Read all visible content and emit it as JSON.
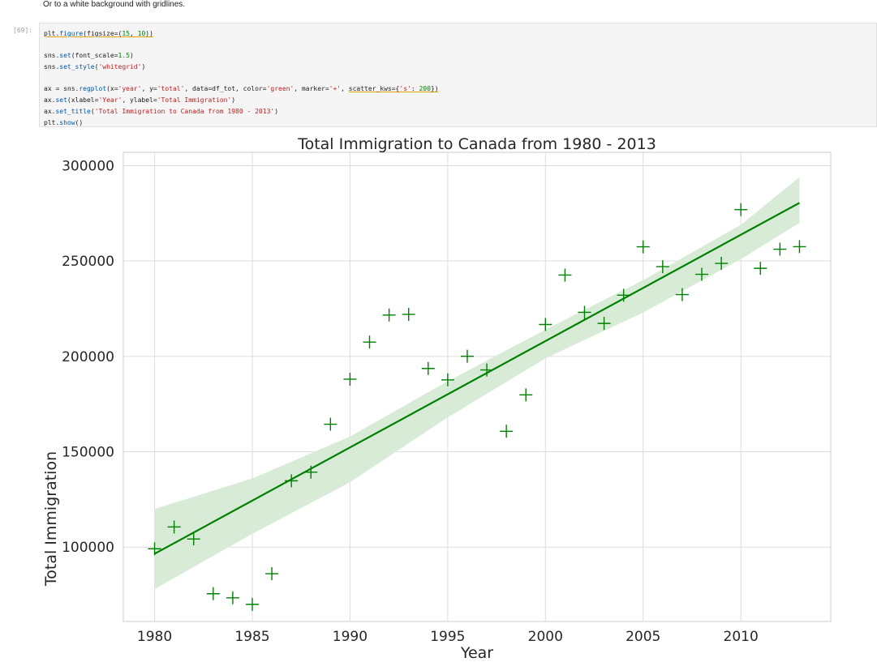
{
  "markdown_text": "Or to a white background with gridlines.",
  "cell_prompt": "[69]:",
  "code_lines": [
    [
      {
        "t": "plt.",
        "c": "ul"
      },
      {
        "t": "figure",
        "c": "ul kw"
      },
      {
        "t": "(",
        "c": "ul"
      },
      {
        "t": "figsize",
        "c": "ul"
      },
      {
        "t": "=(",
        "c": "ul"
      },
      {
        "t": "15",
        "c": "ul num"
      },
      {
        "t": ", ",
        "c": "ul"
      },
      {
        "t": "10",
        "c": "ul num"
      },
      {
        "t": "))",
        "c": "ul"
      }
    ],
    [],
    [
      {
        "t": "sns.",
        "c": ""
      },
      {
        "t": "set",
        "c": "kw"
      },
      {
        "t": "(font_scale=",
        "c": ""
      },
      {
        "t": "1.5",
        "c": "num"
      },
      {
        "t": ")",
        "c": ""
      }
    ],
    [
      {
        "t": "sns.",
        "c": ""
      },
      {
        "t": "set_style",
        "c": "kw"
      },
      {
        "t": "(",
        "c": ""
      },
      {
        "t": "'whitegrid'",
        "c": "str"
      },
      {
        "t": ")",
        "c": ""
      }
    ],
    [],
    [
      {
        "t": "ax = sns.",
        "c": ""
      },
      {
        "t": "regplot",
        "c": "kw"
      },
      {
        "t": "(x=",
        "c": ""
      },
      {
        "t": "'year'",
        "c": "str"
      },
      {
        "t": ", y=",
        "c": ""
      },
      {
        "t": "'total'",
        "c": "str"
      },
      {
        "t": ", data=df_tot, color=",
        "c": ""
      },
      {
        "t": "'green'",
        "c": "str"
      },
      {
        "t": ", marker=",
        "c": ""
      },
      {
        "t": "'+'",
        "c": "str"
      },
      {
        "t": ", ",
        "c": ""
      },
      {
        "t": "scatter_kws={",
        "c": "ul"
      },
      {
        "t": "'s'",
        "c": "ul str"
      },
      {
        "t": ": ",
        "c": "ul"
      },
      {
        "t": "200",
        "c": "ul num"
      },
      {
        "t": "})",
        "c": "ul"
      }
    ],
    [
      {
        "t": "ax.",
        "c": ""
      },
      {
        "t": "set",
        "c": "kw"
      },
      {
        "t": "(xlabel=",
        "c": ""
      },
      {
        "t": "'Year'",
        "c": "str"
      },
      {
        "t": ", ylabel=",
        "c": ""
      },
      {
        "t": "'Total Immigration'",
        "c": "str"
      },
      {
        "t": ")",
        "c": ""
      }
    ],
    [
      {
        "t": "ax.",
        "c": ""
      },
      {
        "t": "set_title",
        "c": "kw"
      },
      {
        "t": "(",
        "c": ""
      },
      {
        "t": "'Total Immigration to Canada from 1980 - 2013'",
        "c": "str"
      },
      {
        "t": ")",
        "c": ""
      }
    ],
    [
      {
        "t": "plt.",
        "c": ""
      },
      {
        "t": "show",
        "c": "kw"
      },
      {
        "t": "()",
        "c": ""
      }
    ]
  ],
  "chart_data": {
    "type": "scatter",
    "title": "Total Immigration to Canada from 1980 - 2013",
    "xlabel": "Year",
    "ylabel": "Total Immigration",
    "xlim": [
      1978.4,
      2014.6
    ],
    "ylim": [
      61000,
      307000
    ],
    "xticks": [
      1980,
      1985,
      1990,
      1995,
      2000,
      2005,
      2010
    ],
    "yticks": [
      100000,
      150000,
      200000,
      250000,
      300000
    ],
    "grid": true,
    "marker": "+",
    "color": "#008000",
    "ci_color": "#d7ebd7",
    "points": [
      [
        1980,
        99137
      ],
      [
        1981,
        110563
      ],
      [
        1982,
        104271
      ],
      [
        1983,
        75550
      ],
      [
        1984,
        73417
      ],
      [
        1985,
        69978
      ],
      [
        1986,
        86048
      ],
      [
        1987,
        134771
      ],
      [
        1988,
        139306
      ],
      [
        1989,
        164432
      ],
      [
        1990,
        188054
      ],
      [
        1991,
        207509
      ],
      [
        1992,
        221687
      ],
      [
        1993,
        222049
      ],
      [
        1994,
        193665
      ],
      [
        1995,
        187712
      ],
      [
        1996,
        200085
      ],
      [
        1997,
        192885
      ],
      [
        1998,
        160727
      ],
      [
        1999,
        179818
      ],
      [
        2000,
        216712
      ],
      [
        2001,
        242658
      ],
      [
        2002,
        223111
      ],
      [
        2003,
        217297
      ],
      [
        2004,
        232083
      ],
      [
        2005,
        257457
      ],
      [
        2006,
        247057
      ],
      [
        2007,
        232405
      ],
      [
        2008,
        243047
      ],
      [
        2009,
        248768
      ],
      [
        2010,
        276956
      ],
      [
        2011,
        246194
      ],
      [
        2012,
        256222
      ],
      [
        2013,
        257537
      ]
    ],
    "regression": {
      "x": [
        1980,
        2013
      ],
      "y": [
        96500,
        280500
      ]
    },
    "ci_band": {
      "x": [
        1980,
        1985,
        1990,
        1995,
        2000,
        2005,
        2010,
        2013
      ],
      "upper": [
        120000,
        136000,
        158000,
        187000,
        214000,
        240000,
        269000,
        294000
      ],
      "lower": [
        78000,
        107000,
        134000,
        168000,
        199000,
        223000,
        251000,
        270000
      ]
    }
  }
}
